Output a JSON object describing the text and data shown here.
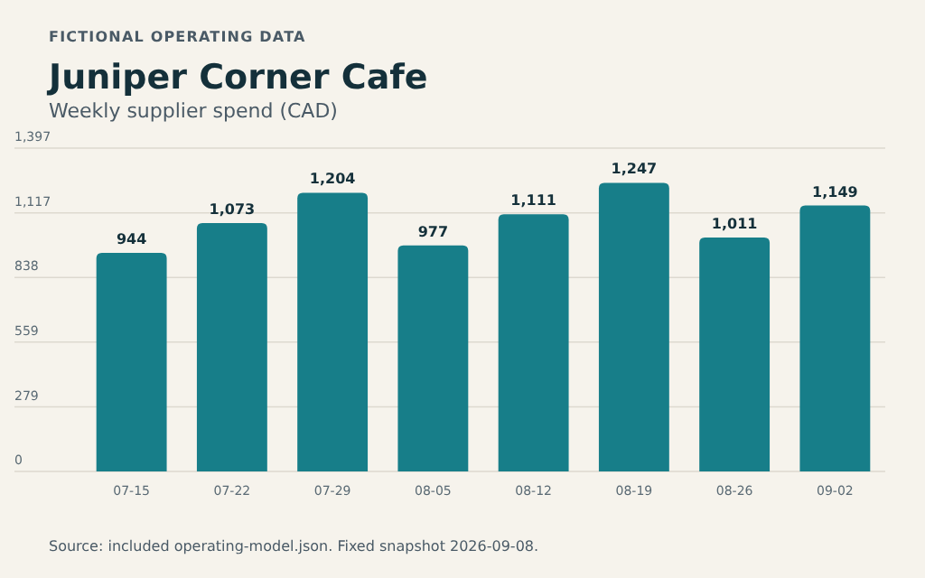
{
  "chart_data": {
    "type": "bar",
    "title": "Juniper Corner Cafe",
    "subtitle": "Weekly supplier spend (CAD)",
    "annotations": [
      "FICTIONAL OPERATING DATA",
      "Source: included operating-model.json. Fixed snapshot 2026-09-08."
    ],
    "categories": [
      "07-15",
      "07-22",
      "07-29",
      "08-05",
      "08-12",
      "08-19",
      "08-26",
      "09-02"
    ],
    "values": [
      944,
      1073,
      1204,
      977,
      1111,
      1247,
      1011,
      1149
    ],
    "value_labels": [
      "944",
      "1,073",
      "1,204",
      "977",
      "1,111",
      "1,247",
      "1,011",
      "1,149"
    ],
    "color": "#177e89",
    "ylim": [
      0,
      1397
    ],
    "yticks": [
      0,
      279,
      559,
      838,
      {
        "value": 1117,
        "label": "1,117"
      },
      {
        "value": 1397,
        "label": "1,397"
      }
    ],
    "grid": "y"
  }
}
